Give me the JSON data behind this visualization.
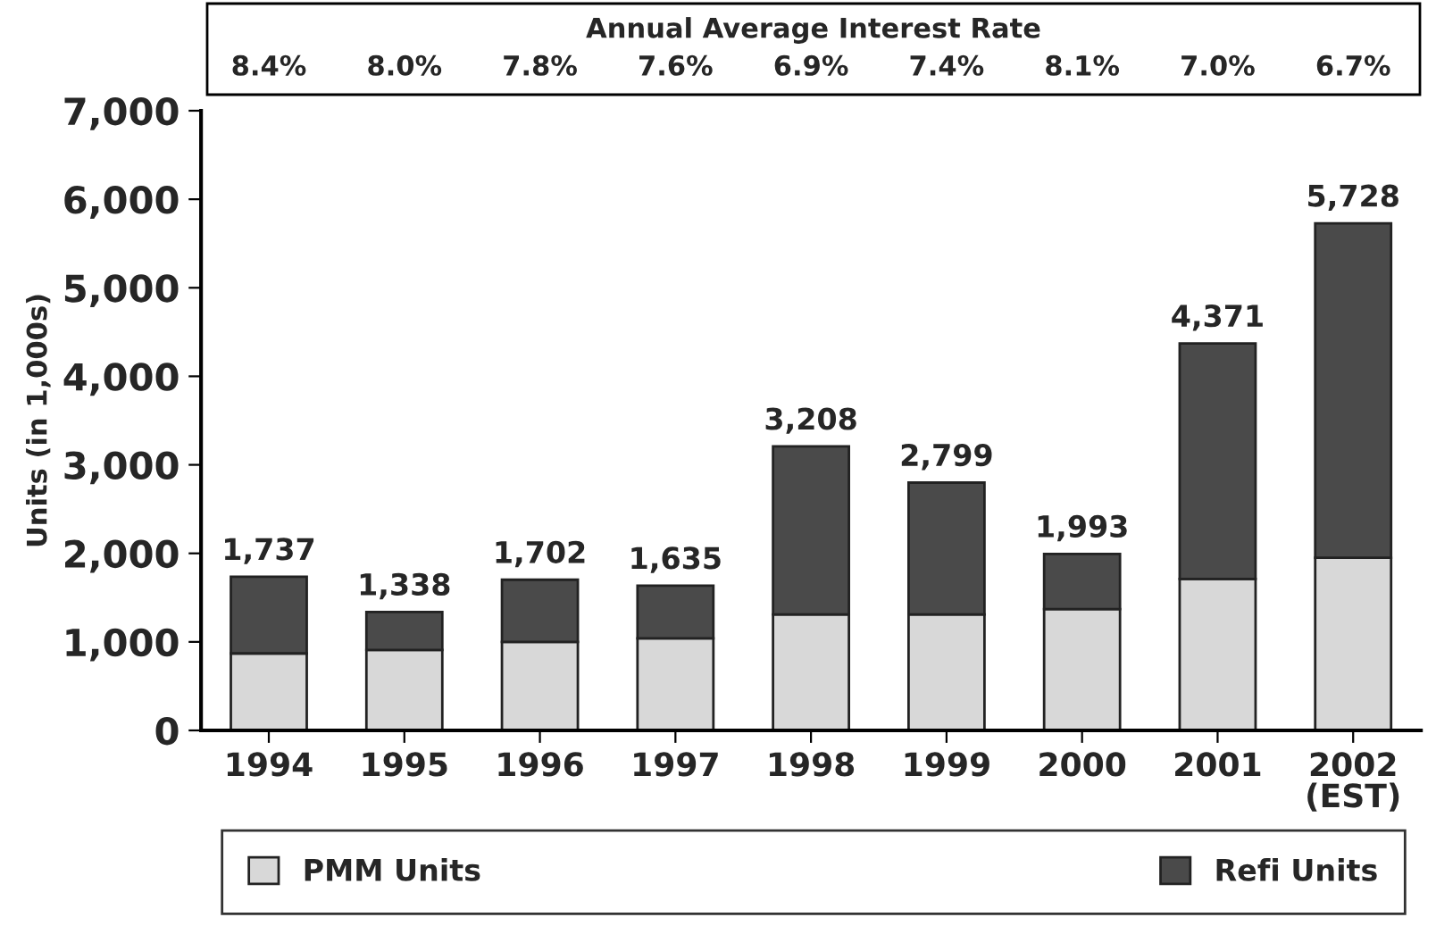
{
  "chart_data": {
    "type": "bar",
    "stacked": true,
    "title": "Annual Average Interest Rate",
    "ylabel": "Units (in 1,000s)",
    "categories": [
      "1994",
      "1995",
      "1996",
      "1997",
      "1998",
      "1999",
      "2000",
      "2001",
      "2002\n(EST)"
    ],
    "series": [
      {
        "name": "PMM Units",
        "color": "#d8d8d8",
        "values": [
          870,
          910,
          1000,
          1040,
          1310,
          1310,
          1370,
          1710,
          1950
        ]
      },
      {
        "name": "Refi Units",
        "color": "#4a4a4a",
        "values": [
          867,
          428,
          702,
          595,
          1898,
          1489,
          623,
          2661,
          3778
        ]
      }
    ],
    "totals": [
      "1,737",
      "1,338",
      "1,702",
      "1,635",
      "3,208",
      "2,799",
      "1,993",
      "4,371",
      "5,728"
    ],
    "annotations": [
      "8.4%",
      "8.0%",
      "7.8%",
      "7.6%",
      "6.9%",
      "7.4%",
      "8.1%",
      "7.0%",
      "6.7%"
    ],
    "ylim": [
      0,
      7000
    ],
    "yticks": [
      {
        "value": 0,
        "label": "0"
      },
      {
        "value": 1000,
        "label": "1,000"
      },
      {
        "value": 2000,
        "label": "2,000"
      },
      {
        "value": 3000,
        "label": "3,000"
      },
      {
        "value": 4000,
        "label": "4,000"
      },
      {
        "value": 5000,
        "label": "5,000"
      },
      {
        "value": 6000,
        "label": "6,000"
      },
      {
        "value": 7000,
        "label": "7,000"
      }
    ],
    "grid": false,
    "legend": "bottom"
  }
}
